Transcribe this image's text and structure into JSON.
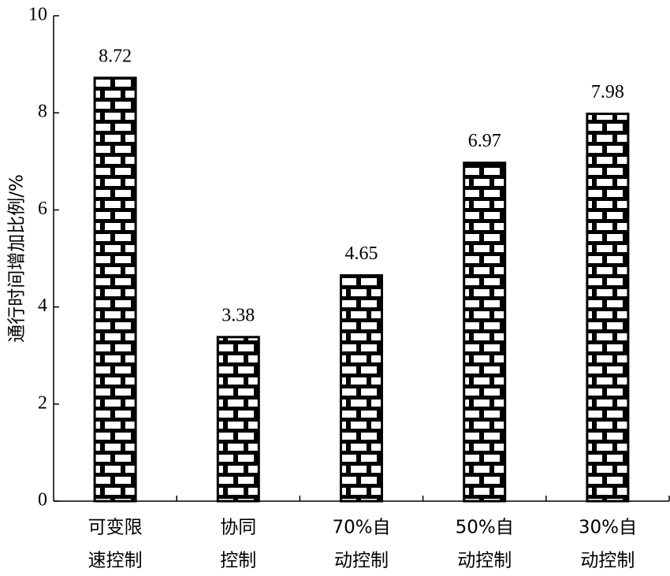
{
  "chart_data": {
    "type": "bar",
    "ylabel": "通行时间增加比例/%",
    "categories": [
      [
        "可变限",
        "速控制"
      ],
      [
        "协同",
        "控制"
      ],
      [
        "70%自",
        "动控制"
      ],
      [
        "50%自",
        "动控制"
      ],
      [
        "30%自",
        "动控制"
      ]
    ],
    "values": [
      8.72,
      3.38,
      4.65,
      6.97,
      7.98
    ],
    "color": "#000000",
    "ylim": [
      0,
      10
    ],
    "yticks": [
      0,
      2,
      4,
      6,
      8,
      10
    ]
  }
}
